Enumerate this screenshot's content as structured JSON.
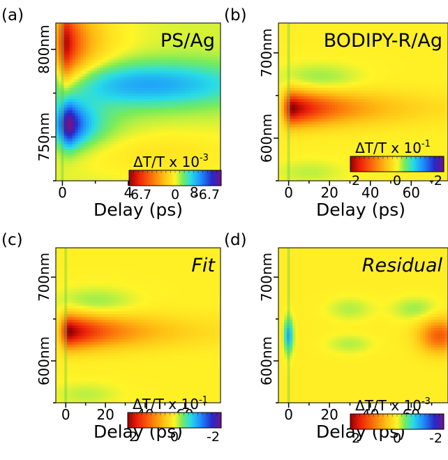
{
  "chart_data": [
    {
      "type": "heatmap",
      "panel_label": "(a)",
      "title": "PS/Ag",
      "title_style": "normal",
      "xlabel": "Delay (ps)",
      "ylabel": "",
      "xlim": [
        -0.4,
        9.6
      ],
      "ylim": [
        725,
        815
      ],
      "x_ticks": [
        0,
        4,
        8
      ],
      "x_tick_labels": [
        "0",
        "4",
        "8"
      ],
      "y_ticks": [
        750,
        800
      ],
      "y_tick_labels": [
        "750nm",
        "800nm"
      ],
      "colorbar": {
        "label": "ΔT/T x 10",
        "exponent": "-3",
        "tick_labels": [
          "6.7",
          "0",
          "-6.7"
        ],
        "range": [
          6.7,
          -6.7
        ]
      },
      "features": [
        {
          "x": 0.5,
          "y": 757,
          "amp": -1.0,
          "sx": 0.6,
          "sy": 9,
          "tau": 1.2
        },
        {
          "x": 5.0,
          "y": 780,
          "amp": -0.45,
          "sx": 4.5,
          "sy": 9,
          "tau": 0
        },
        {
          "x": 0.3,
          "y": 803,
          "amp": 1.0,
          "sx": 0.45,
          "sy": 16,
          "tau": 1.4
        },
        {
          "x": 6.0,
          "y": 740,
          "amp": 0.12,
          "sx": 4.0,
          "sy": 10,
          "tau": 0
        }
      ],
      "background": -0.05
    },
    {
      "type": "heatmap",
      "panel_label": "(b)",
      "title": "BODIPY-R/Ag",
      "title_style": "normal",
      "xlabel": "Delay (ps)",
      "ylabel": "",
      "xlim": [
        -5,
        78
      ],
      "ylim": [
        550,
        735
      ],
      "x_ticks": [
        0,
        20,
        40,
        60
      ],
      "x_tick_labels": [
        "0",
        "20",
        "40",
        "60"
      ],
      "y_ticks": [
        600,
        700
      ],
      "y_tick_labels": [
        "600nm",
        "700nm"
      ],
      "colorbar": {
        "label": "ΔT/T x 10",
        "exponent": "-1",
        "tick_labels": [
          "2",
          "0",
          "-2"
        ],
        "range": [
          2,
          -2
        ]
      },
      "features": [
        {
          "x": 2,
          "y": 635,
          "amp": 1.0,
          "sx": 3,
          "sy": 14,
          "tau": 30
        },
        {
          "x": 15,
          "y": 670,
          "amp": -0.15,
          "sx": 14,
          "sy": 12,
          "tau": 0
        },
        {
          "x": 10,
          "y": 560,
          "amp": -0.1,
          "sx": 12,
          "sy": 10,
          "tau": 0
        }
      ],
      "background": 0.02
    },
    {
      "type": "heatmap",
      "panel_label": "(c)",
      "title": "Fit",
      "title_style": "italic",
      "xlabel": "Delay (ps)",
      "ylabel": "",
      "xlim": [
        -5,
        78
      ],
      "ylim": [
        550,
        735
      ],
      "x_ticks": [
        0,
        20,
        40,
        60
      ],
      "x_tick_labels": [
        "0",
        "20",
        "40",
        "60"
      ],
      "y_ticks": [
        600,
        700
      ],
      "y_tick_labels": [
        "600nm",
        "700nm"
      ],
      "colorbar": {
        "label": "ΔT/T x 10",
        "exponent": "-1",
        "tick_labels": [
          "2",
          "0",
          "-2"
        ],
        "range": [
          2,
          -2
        ]
      },
      "features": [
        {
          "x": 2,
          "y": 635,
          "amp": 1.0,
          "sx": 3,
          "sy": 14,
          "tau": 30
        },
        {
          "x": 15,
          "y": 670,
          "amp": -0.15,
          "sx": 14,
          "sy": 12,
          "tau": 0
        },
        {
          "x": 10,
          "y": 560,
          "amp": -0.1,
          "sx": 12,
          "sy": 10,
          "tau": 0
        }
      ],
      "background": 0.02
    },
    {
      "type": "heatmap",
      "panel_label": "(d)",
      "title": "Residual",
      "title_style": "italic",
      "xlabel": "Delay (ps)",
      "ylabel": "",
      "xlim": [
        -5,
        78
      ],
      "ylim": [
        550,
        735
      ],
      "x_ticks": [
        0,
        20,
        40,
        60
      ],
      "x_tick_labels": [
        "0",
        "20",
        "40",
        "60"
      ],
      "y_ticks": [
        600,
        700
      ],
      "y_tick_labels": [
        "600nm",
        "700nm"
      ],
      "colorbar": {
        "label": "ΔT/T x 10",
        "exponent": "-3",
        "tick_labels": [
          "2",
          "0",
          "-2"
        ],
        "range": [
          2,
          -2
        ]
      },
      "features": [
        {
          "x": 0,
          "y": 630,
          "amp": -0.55,
          "sx": 1.5,
          "sy": 14,
          "tau": 0
        },
        {
          "x": 74,
          "y": 630,
          "amp": 0.55,
          "sx": 7,
          "sy": 14,
          "tau": 0
        },
        {
          "x": 30,
          "y": 662,
          "amp": -0.12,
          "sx": 8,
          "sy": 10,
          "tau": 0
        },
        {
          "x": 30,
          "y": 620,
          "amp": -0.12,
          "sx": 8,
          "sy": 8,
          "tau": 0
        },
        {
          "x": 62,
          "y": 662,
          "amp": -0.15,
          "sx": 8,
          "sy": 10,
          "tau": 0
        }
      ],
      "background": 0.03
    }
  ]
}
